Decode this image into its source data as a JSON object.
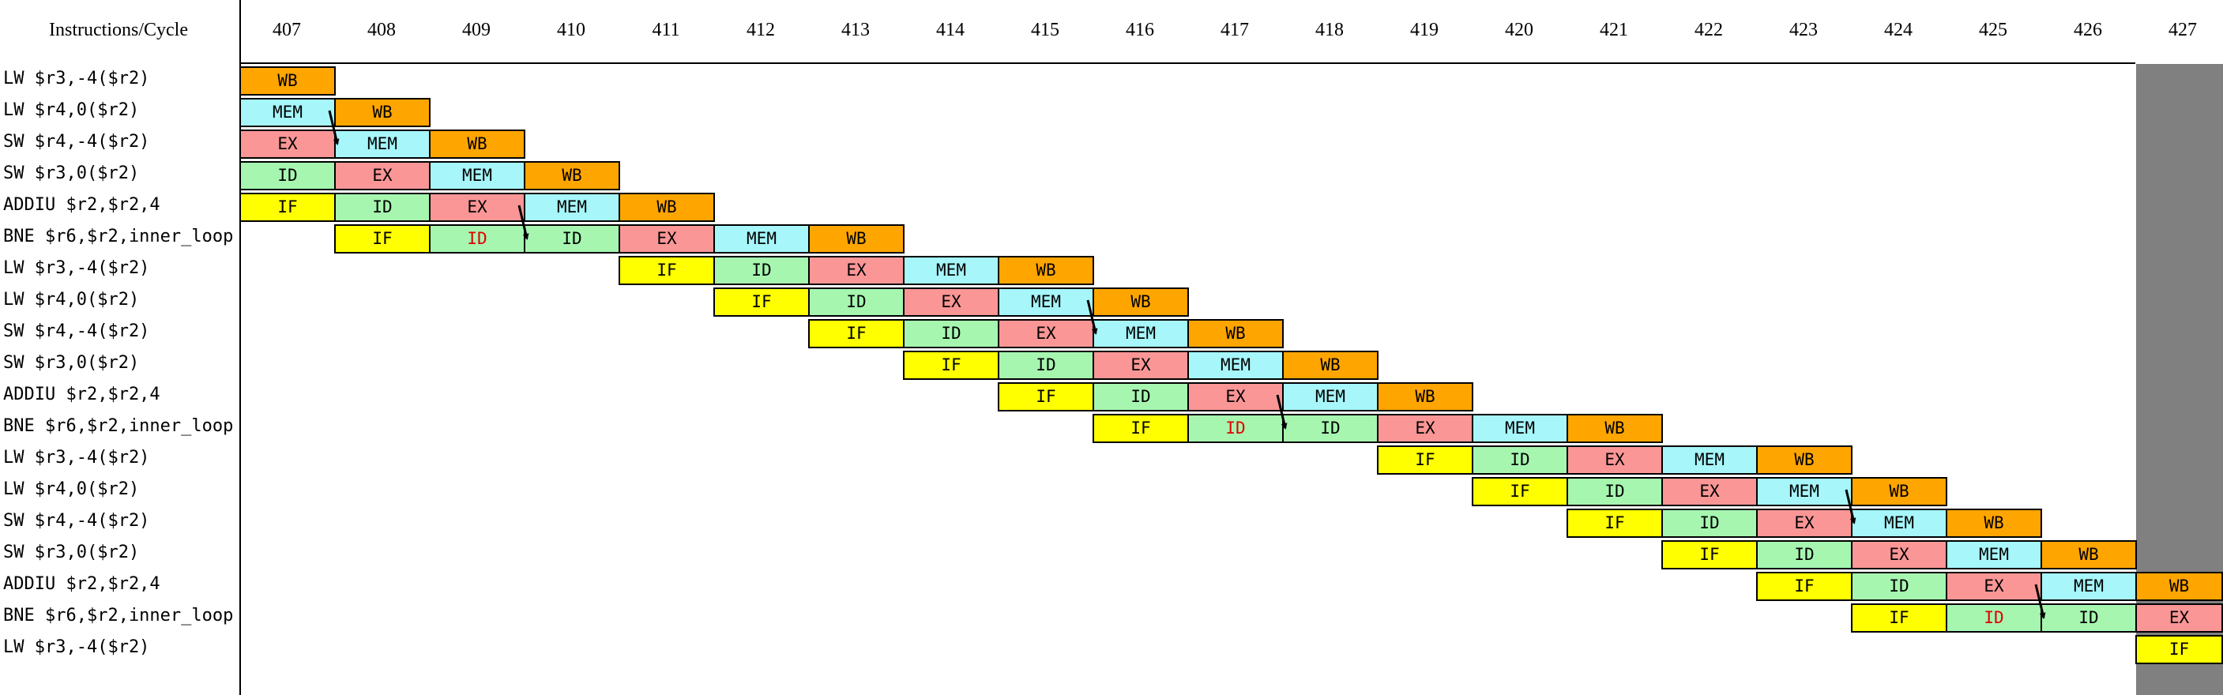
{
  "header": "Instructions/Cycle",
  "cycles": [
    "407",
    "408",
    "409",
    "410",
    "411",
    "412",
    "413",
    "414",
    "415",
    "416",
    "417",
    "418",
    "419",
    "420",
    "421",
    "422",
    "423",
    "424",
    "425",
    "426",
    "427"
  ],
  "stage_colors": {
    "IF": "#ffff00",
    "ID": "#a6f6b0",
    "EX": "#fa9696",
    "MEM": "#a6f6fa",
    "WB": "#ffa500"
  },
  "stall_text_color": "#e00000",
  "instructions": [
    {
      "label": "LW $r3,-4($r2)",
      "stages": [
        {
          "s": "WB",
          "c": 0
        }
      ]
    },
    {
      "label": "LW $r4,0($r2)",
      "stages": [
        {
          "s": "MEM",
          "c": 0
        },
        {
          "s": "WB",
          "c": 1
        }
      ]
    },
    {
      "label": "SW $r4,-4($r2)",
      "stages": [
        {
          "s": "EX",
          "c": 0
        },
        {
          "s": "MEM",
          "c": 1
        },
        {
          "s": "WB",
          "c": 2
        }
      ]
    },
    {
      "label": "SW $r3,0($r2)",
      "stages": [
        {
          "s": "ID",
          "c": 0
        },
        {
          "s": "EX",
          "c": 1
        },
        {
          "s": "MEM",
          "c": 2
        },
        {
          "s": "WB",
          "c": 3
        }
      ]
    },
    {
      "label": "ADDIU $r2,$r2,4",
      "stages": [
        {
          "s": "IF",
          "c": 0
        },
        {
          "s": "ID",
          "c": 1
        },
        {
          "s": "EX",
          "c": 2
        },
        {
          "s": "MEM",
          "c": 3
        },
        {
          "s": "WB",
          "c": 4
        }
      ]
    },
    {
      "label": "BNE $r6,$r2,inner_loop",
      "stages": [
        {
          "s": "IF",
          "c": 1
        },
        {
          "s": "ID",
          "c": 2,
          "stall": true
        },
        {
          "s": "ID",
          "c": 3
        },
        {
          "s": "EX",
          "c": 4
        },
        {
          "s": "MEM",
          "c": 5
        },
        {
          "s": "WB",
          "c": 6
        }
      ]
    },
    {
      "label": "LW $r3,-4($r2)",
      "stages": [
        {
          "s": "IF",
          "c": 4
        },
        {
          "s": "ID",
          "c": 5
        },
        {
          "s": "EX",
          "c": 6
        },
        {
          "s": "MEM",
          "c": 7
        },
        {
          "s": "WB",
          "c": 8
        }
      ]
    },
    {
      "label": "LW $r4,0($r2)",
      "stages": [
        {
          "s": "IF",
          "c": 5
        },
        {
          "s": "ID",
          "c": 6
        },
        {
          "s": "EX",
          "c": 7
        },
        {
          "s": "MEM",
          "c": 8
        },
        {
          "s": "WB",
          "c": 9
        }
      ]
    },
    {
      "label": "SW $r4,-4($r2)",
      "stages": [
        {
          "s": "IF",
          "c": 6
        },
        {
          "s": "ID",
          "c": 7
        },
        {
          "s": "EX",
          "c": 8
        },
        {
          "s": "MEM",
          "c": 9
        },
        {
          "s": "WB",
          "c": 10
        }
      ]
    },
    {
      "label": "SW $r3,0($r2)",
      "stages": [
        {
          "s": "IF",
          "c": 7
        },
        {
          "s": "ID",
          "c": 8
        },
        {
          "s": "EX",
          "c": 9
        },
        {
          "s": "MEM",
          "c": 10
        },
        {
          "s": "WB",
          "c": 11
        }
      ]
    },
    {
      "label": "ADDIU $r2,$r2,4",
      "stages": [
        {
          "s": "IF",
          "c": 8
        },
        {
          "s": "ID",
          "c": 9
        },
        {
          "s": "EX",
          "c": 10
        },
        {
          "s": "MEM",
          "c": 11
        },
        {
          "s": "WB",
          "c": 12
        }
      ]
    },
    {
      "label": "BNE $r6,$r2,inner_loop",
      "stages": [
        {
          "s": "IF",
          "c": 9
        },
        {
          "s": "ID",
          "c": 10,
          "stall": true
        },
        {
          "s": "ID",
          "c": 11
        },
        {
          "s": "EX",
          "c": 12
        },
        {
          "s": "MEM",
          "c": 13
        },
        {
          "s": "WB",
          "c": 14
        }
      ]
    },
    {
      "label": "LW $r3,-4($r2)",
      "stages": [
        {
          "s": "IF",
          "c": 12
        },
        {
          "s": "ID",
          "c": 13
        },
        {
          "s": "EX",
          "c": 14
        },
        {
          "s": "MEM",
          "c": 15
        },
        {
          "s": "WB",
          "c": 16
        }
      ]
    },
    {
      "label": "LW $r4,0($r2)",
      "stages": [
        {
          "s": "IF",
          "c": 13
        },
        {
          "s": "ID",
          "c": 14
        },
        {
          "s": "EX",
          "c": 15
        },
        {
          "s": "MEM",
          "c": 16
        },
        {
          "s": "WB",
          "c": 17
        }
      ]
    },
    {
      "label": "SW $r4,-4($r2)",
      "stages": [
        {
          "s": "IF",
          "c": 14
        },
        {
          "s": "ID",
          "c": 15
        },
        {
          "s": "EX",
          "c": 16
        },
        {
          "s": "MEM",
          "c": 17
        },
        {
          "s": "WB",
          "c": 18
        }
      ]
    },
    {
      "label": "SW $r3,0($r2)",
      "stages": [
        {
          "s": "IF",
          "c": 15
        },
        {
          "s": "ID",
          "c": 16
        },
        {
          "s": "EX",
          "c": 17
        },
        {
          "s": "MEM",
          "c": 18
        },
        {
          "s": "WB",
          "c": 19
        }
      ]
    },
    {
      "label": "ADDIU $r2,$r2,4",
      "stages": [
        {
          "s": "IF",
          "c": 16
        },
        {
          "s": "ID",
          "c": 17
        },
        {
          "s": "EX",
          "c": 18
        },
        {
          "s": "MEM",
          "c": 19
        },
        {
          "s": "WB",
          "c": 20
        }
      ]
    },
    {
      "label": "BNE $r6,$r2,inner_loop",
      "stages": [
        {
          "s": "IF",
          "c": 17
        },
        {
          "s": "ID",
          "c": 18,
          "stall": true
        },
        {
          "s": "ID",
          "c": 19
        },
        {
          "s": "EX",
          "c": 20
        }
      ]
    },
    {
      "label": "LW $r3,-4($r2)",
      "stages": [
        {
          "s": "IF",
          "c": 20
        }
      ]
    }
  ],
  "forwarding_arrows": [
    {
      "from_row": 1,
      "to_row": 2,
      "cycle_boundary": 1
    },
    {
      "from_row": 4,
      "to_row": 5,
      "cycle_boundary": 3
    },
    {
      "from_row": 7,
      "to_row": 8,
      "cycle_boundary": 9
    },
    {
      "from_row": 10,
      "to_row": 11,
      "cycle_boundary": 11
    },
    {
      "from_row": 13,
      "to_row": 14,
      "cycle_boundary": 17
    },
    {
      "from_row": 16,
      "to_row": 17,
      "cycle_boundary": 19
    }
  ]
}
